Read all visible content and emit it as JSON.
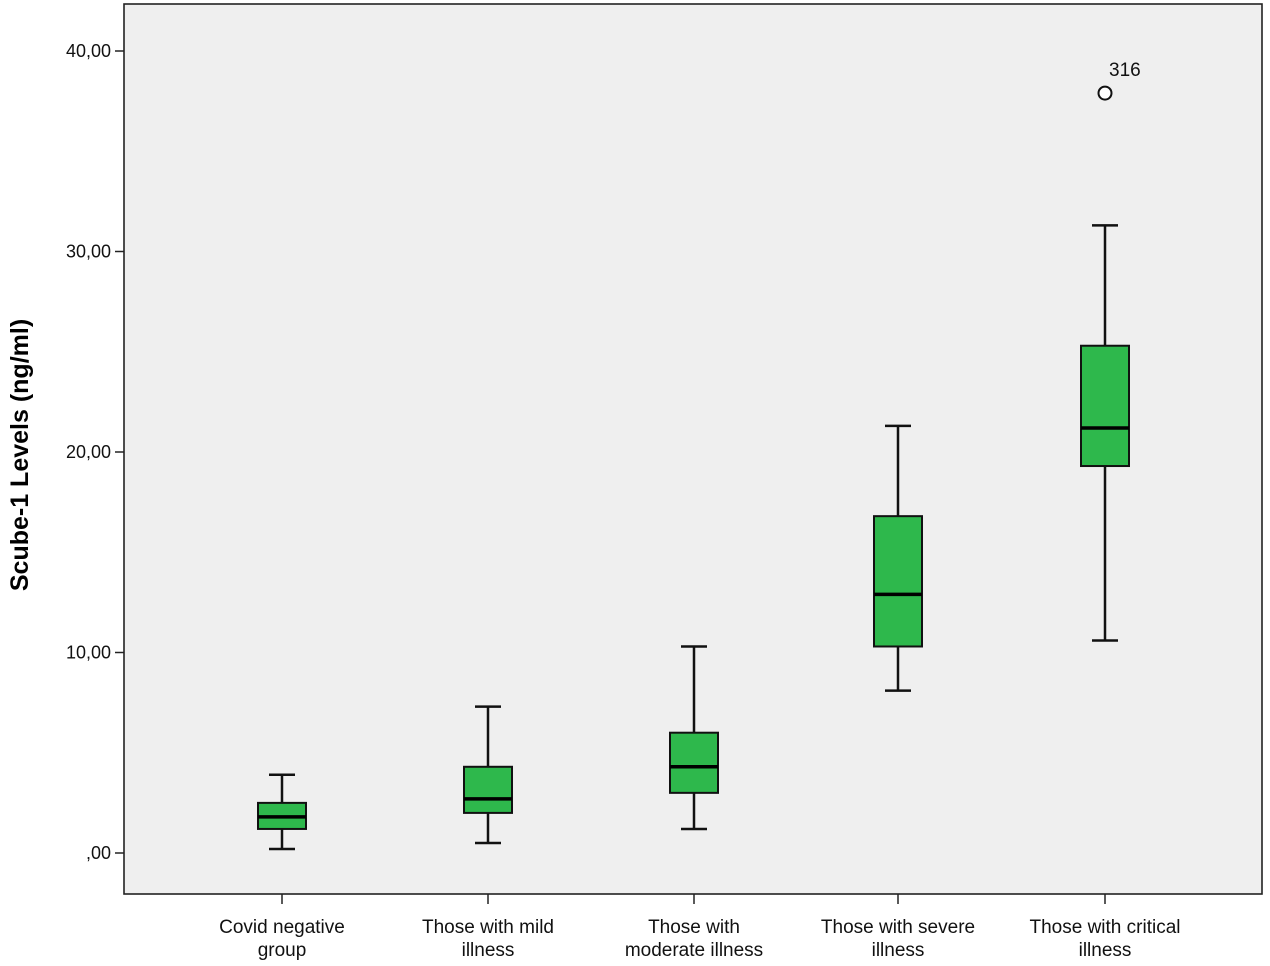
{
  "chart_data": {
    "type": "boxplot",
    "title": "",
    "xlabel": "",
    "ylabel": "Scube-1 Levels (ng/ml)",
    "ylim": [
      -2,
      42
    ],
    "yticks": [
      0,
      10,
      20,
      30,
      40
    ],
    "ytick_labels": [
      ",00",
      "10,00",
      "20,00",
      "30,00",
      "40,00"
    ],
    "grid": false,
    "colors": {
      "plot_background": "#efefef",
      "box_fill": "#2eb84c",
      "box_stroke": "#111111",
      "median": "#000000",
      "whisker": "#111111"
    },
    "categories": [
      [
        "Covid negative",
        "group"
      ],
      [
        "Those with mild",
        "illness"
      ],
      [
        "Those with",
        "moderate illness"
      ],
      [
        "Those with severe",
        "illness"
      ],
      [
        "Those with critical",
        "illness"
      ]
    ],
    "boxes": [
      {
        "min": 0.2,
        "q1": 1.2,
        "median": 1.8,
        "q3": 2.5,
        "max": 3.9,
        "outliers": []
      },
      {
        "min": 0.5,
        "q1": 2.0,
        "median": 2.7,
        "q3": 4.3,
        "max": 7.3,
        "outliers": []
      },
      {
        "min": 1.2,
        "q1": 3.0,
        "median": 4.3,
        "q3": 6.0,
        "max": 10.3,
        "outliers": []
      },
      {
        "min": 8.1,
        "q1": 10.3,
        "median": 12.9,
        "q3": 16.8,
        "max": 21.3,
        "outliers": []
      },
      {
        "min": 10.6,
        "q1": 19.3,
        "median": 21.2,
        "q3": 25.3,
        "max": 31.3,
        "outliers": [
          {
            "value": 37.9,
            "label": "316"
          }
        ]
      }
    ]
  }
}
